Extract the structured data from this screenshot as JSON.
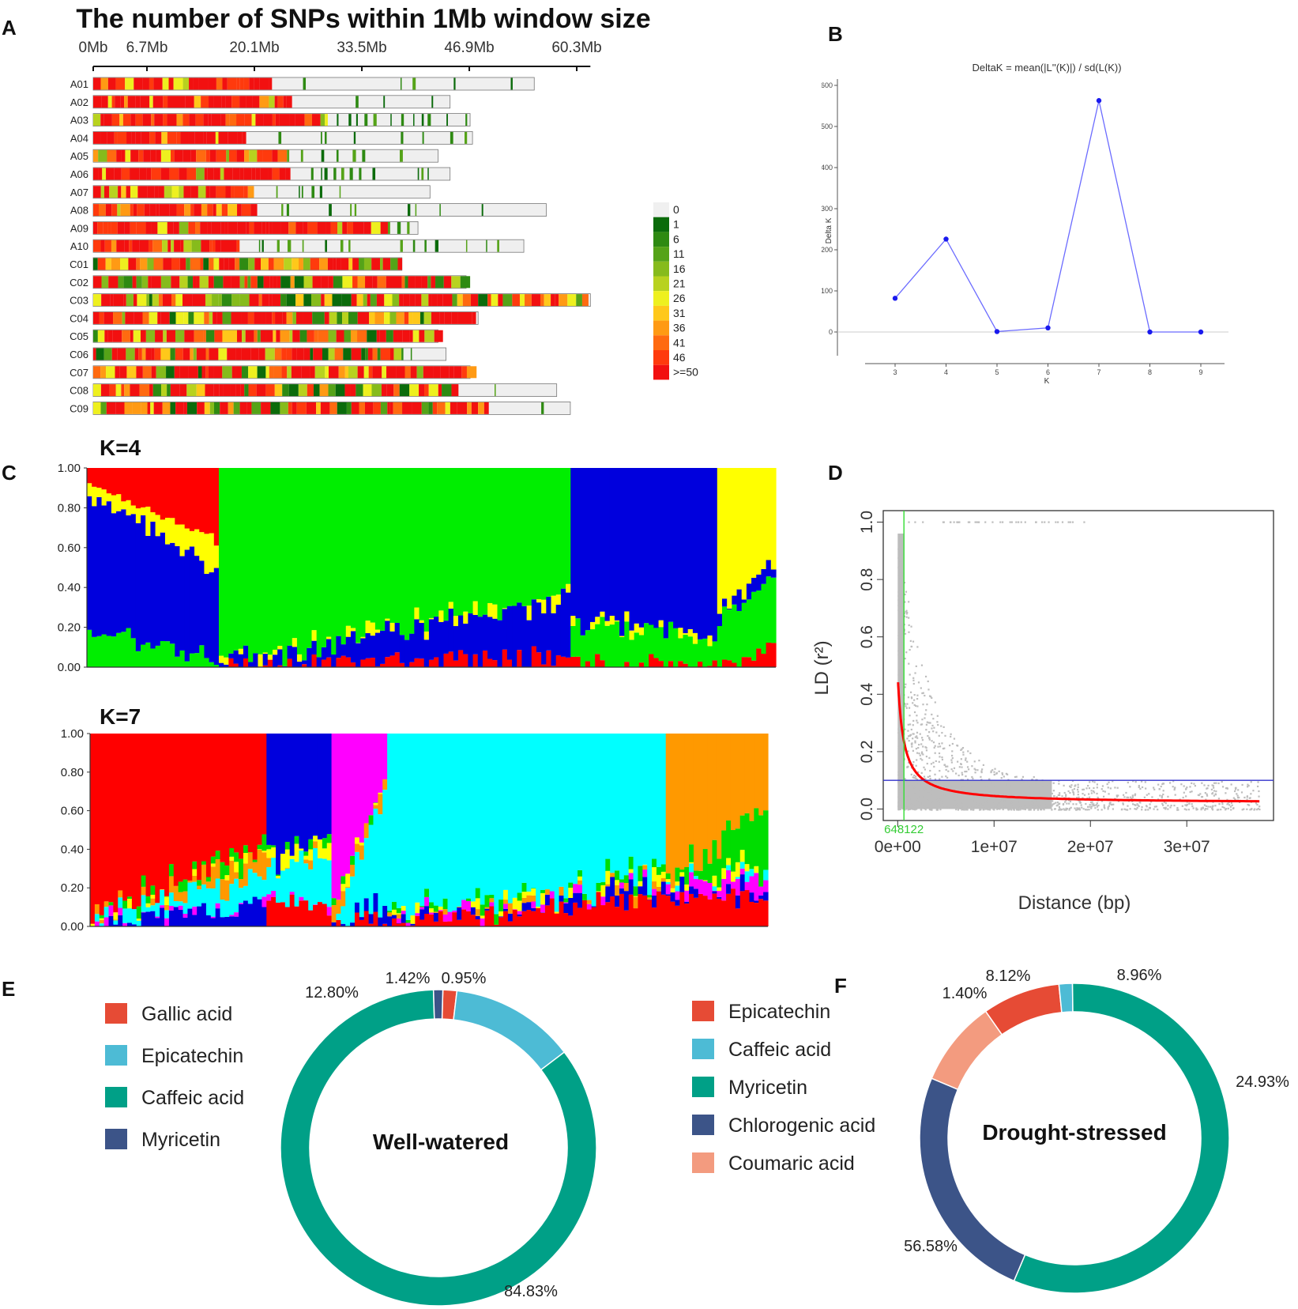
{
  "panels": {
    "A": {
      "label": "A",
      "chart_data": {
        "type": "heatmap",
        "title": "The number of SNPs within 1Mb window size",
        "axis_ticks": [
          "0Mb",
          "6.7Mb",
          "20.1Mb",
          "33.5Mb",
          "46.9Mb",
          "60.3Mb"
        ],
        "axis_tick_values_mb": [
          0,
          6.7,
          20.1,
          33.5,
          46.9,
          60.3
        ],
        "chromosomes": [
          {
            "name": "A01",
            "length_mb": 55.0,
            "dense_mb": 22.0
          },
          {
            "name": "A02",
            "length_mb": 44.5,
            "dense_mb": 24.5
          },
          {
            "name": "A03",
            "length_mb": 47.0,
            "dense_mb": 29.0
          },
          {
            "name": "A04",
            "length_mb": 47.3,
            "dense_mb": 19.0
          },
          {
            "name": "A05",
            "length_mb": 43.0,
            "dense_mb": 24.0
          },
          {
            "name": "A06",
            "length_mb": 44.5,
            "dense_mb": 24.0
          },
          {
            "name": "A07",
            "length_mb": 42.0,
            "dense_mb": 20.0
          },
          {
            "name": "A08",
            "length_mb": 56.5,
            "dense_mb": 20.0
          },
          {
            "name": "A09",
            "length_mb": 40.5,
            "dense_mb": 36.0
          },
          {
            "name": "A10",
            "length_mb": 53.7,
            "dense_mb": 18.0
          },
          {
            "name": "C01",
            "length_mb": 38.5,
            "dense_mb": 38.5
          },
          {
            "name": "C02",
            "length_mb": 46.5,
            "dense_mb": 46.5
          },
          {
            "name": "C03",
            "length_mb": 62.0,
            "dense_mb": 62.0
          },
          {
            "name": "C04",
            "length_mb": 48.0,
            "dense_mb": 48.0
          },
          {
            "name": "C05",
            "length_mb": 43.0,
            "dense_mb": 43.0
          },
          {
            "name": "C06",
            "length_mb": 44.0,
            "dense_mb": 38.0
          },
          {
            "name": "C07",
            "length_mb": 47.0,
            "dense_mb": 47.0
          },
          {
            "name": "C08",
            "length_mb": 57.8,
            "dense_mb": 45.0
          },
          {
            "name": "C09",
            "length_mb": 59.5,
            "dense_mb": 49.0
          }
        ],
        "legend": [
          "0",
          "1",
          "6",
          "11",
          "16",
          "21",
          "26",
          "31",
          "36",
          "41",
          "46",
          ">=50"
        ],
        "legend_colors": [
          "#f0f0f0",
          "#0b6b0b",
          "#2e8a12",
          "#55a318",
          "#86bb1c",
          "#b8d21f",
          "#eef01f",
          "#ffc81a",
          "#ff9a14",
          "#ff6a10",
          "#ff3a0d",
          "#f21010"
        ]
      }
    },
    "B": {
      "label": "B",
      "chart_data": {
        "type": "line",
        "title": "DeltaK = mean(|L''(K)|) / sd(L(K))",
        "xlabel": "K",
        "ylabel": "Delta K",
        "x": [
          3,
          4,
          5,
          6,
          7,
          8,
          9
        ],
        "values": [
          82,
          226,
          1,
          10,
          563,
          0,
          0
        ],
        "ylim": [
          0,
          600
        ],
        "yticks": [
          0,
          100,
          200,
          300,
          400,
          500,
          600
        ],
        "color": "#6b6bff"
      }
    },
    "C": {
      "label": "C",
      "k4_title": "K=4",
      "k7_title": "K=7",
      "chart_data": {
        "type": "bar",
        "stacked": true,
        "yticks": [
          "0.00",
          "0.20",
          "0.40",
          "0.60",
          "0.80",
          "1.00"
        ],
        "k4": {
          "cluster_colors": [
            "#ff0000",
            "#00ee00",
            "#0000dd",
            "#ffff00"
          ],
          "groups": [
            {
              "cluster": 0,
              "n": 27,
              "start": [
                0.08,
                0.18,
                0.68,
                0.06
              ],
              "end": [
                0.35,
                0.05,
                0.45,
                0.15
              ]
            },
            {
              "cluster": 1,
              "n": 72,
              "start": [
                0.0,
                1.0,
                0.0,
                0.0
              ],
              "end": [
                0.05,
                0.62,
                0.3,
                0.03
              ]
            },
            {
              "cluster": 2,
              "n": 30,
              "start": [
                0.02,
                0.2,
                0.78,
                0.0
              ],
              "end": [
                0.02,
                0.15,
                0.83,
                0.0
              ]
            },
            {
              "cluster": 3,
              "n": 12,
              "start": [
                0.02,
                0.22,
                0.06,
                0.7
              ],
              "end": [
                0.1,
                0.35,
                0.05,
                0.5
              ]
            }
          ]
        },
        "k7": {
          "cluster_colors": [
            "#ff0000",
            "#0000dd",
            "#ff00ff",
            "#00ffff",
            "#ff9900",
            "#ffff00",
            "#00dd00"
          ],
          "groups": [
            {
              "cluster": 0,
              "n": 38,
              "start": [
                1.0,
                0.0,
                0.0,
                0.0,
                0.0,
                0.0,
                0.0
              ],
              "end": [
                0.58,
                0.12,
                0.0,
                0.15,
                0.1,
                0.0,
                0.05
              ]
            },
            {
              "cluster": 1,
              "n": 14,
              "start": [
                0.12,
                0.68,
                0.0,
                0.15,
                0.0,
                0.05,
                0.0
              ],
              "end": [
                0.1,
                0.55,
                0.0,
                0.3,
                0.0,
                0.05,
                0.0
              ]
            },
            {
              "cluster": 2,
              "n": 12,
              "start": [
                0.0,
                0.0,
                0.92,
                0.0,
                0.05,
                0.03,
                0.0
              ],
              "end": [
                0.05,
                0.05,
                0.25,
                0.6,
                0.05,
                0.0,
                0.0
              ]
            },
            {
              "cluster": 3,
              "n": 60,
              "start": [
                0.0,
                0.0,
                0.0,
                1.0,
                0.0,
                0.0,
                0.0
              ],
              "end": [
                0.16,
                0.06,
                0.0,
                0.72,
                0.0,
                0.03,
                0.03
              ]
            },
            {
              "cluster": 4,
              "n": 22,
              "start": [
                0.15,
                0.03,
                0.02,
                0.0,
                0.8,
                0.0,
                0.0
              ],
              "end": [
                0.15,
                0.05,
                0.1,
                0.0,
                0.36,
                0.04,
                0.3
              ]
            }
          ]
        }
      }
    },
    "D": {
      "label": "D",
      "chart_data": {
        "type": "scatter",
        "xlabel": "Distance (bp)",
        "ylabel": "LD (r²)",
        "xticks": [
          "0e+00",
          "1e+07",
          "2e+07",
          "3e+07"
        ],
        "xtick_values": [
          0,
          10000000,
          20000000,
          30000000
        ],
        "yticks": [
          "0.0",
          "0.2",
          "0.4",
          "0.6",
          "0.8",
          "1.0"
        ],
        "ytick_values": [
          0,
          0.2,
          0.4,
          0.6,
          0.8,
          1.0
        ],
        "xlim": [
          -1500000,
          39000000
        ],
        "ylim": [
          -0.04,
          1.04
        ],
        "decay_distance_label": "648122",
        "decay_distance": 648122,
        "threshold_r2": 0.1,
        "fit_curve": {
          "r0": 0.47,
          "r_inf": 0.02
        },
        "point_color": "#bdbdbd",
        "curve_color": "#ff0000",
        "hline_color": "#3333cc",
        "vline_color": "#33dd33"
      }
    },
    "E": {
      "label": "E",
      "chart_data": {
        "type": "pie",
        "center_label": "Well-watered",
        "slices": [
          {
            "name": "Gallic acid",
            "value": 1.42,
            "label": "1.42%",
            "color": "#e64b35"
          },
          {
            "name": "Epicatechin",
            "value": 12.8,
            "label": "12.80%",
            "color": "#4dbbd5"
          },
          {
            "name": "Caffeic acid",
            "value": 84.83,
            "label": "84.83%",
            "color": "#00a087"
          },
          {
            "name": "Myricetin",
            "value": 0.95,
            "label": "0.95%",
            "color": "#3c5488"
          }
        ]
      }
    },
    "F": {
      "label": "F",
      "chart_data": {
        "type": "pie",
        "center_label": "Drought-stressed",
        "slices": [
          {
            "name": "Epicatechin",
            "value": 8.12,
            "label": "8.12%",
            "color": "#e64b35"
          },
          {
            "name": "Caffeic acid",
            "value": 1.4,
            "label": "1.40%",
            "color": "#4dbbd5"
          },
          {
            "name": "Myricetin",
            "value": 56.58,
            "label": "56.58%",
            "color": "#00a087"
          },
          {
            "name": "Chlorogenic acid",
            "value": 24.93,
            "label": "24.93%",
            "color": "#3c5488"
          },
          {
            "name": "Coumaric acid",
            "value": 8.96,
            "label": "8.96%",
            "color": "#f39b7f"
          }
        ]
      }
    }
  }
}
